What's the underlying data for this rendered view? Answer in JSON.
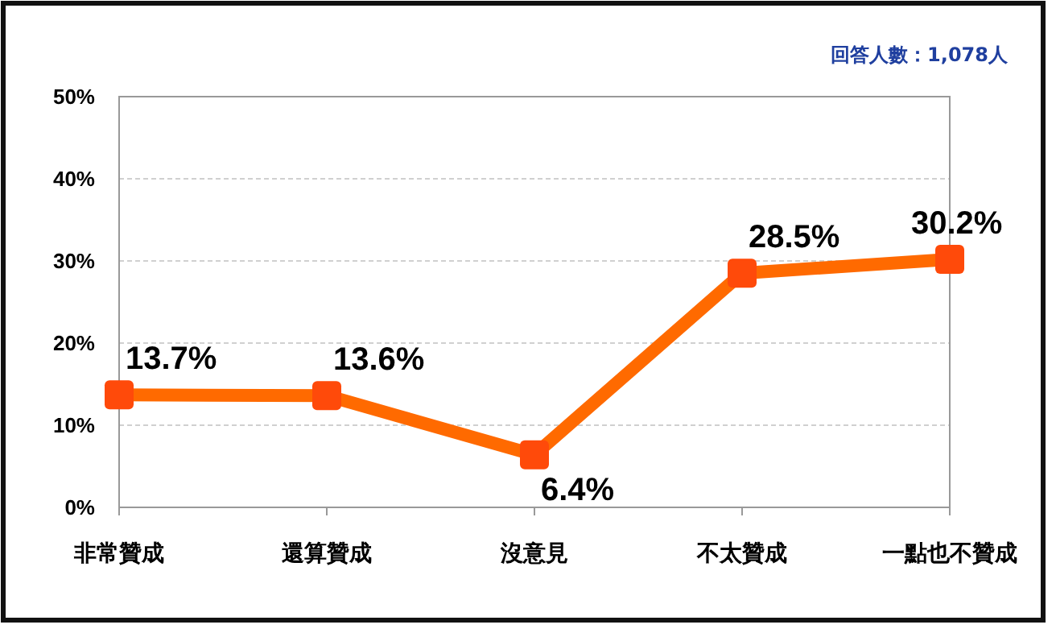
{
  "chart_data": {
    "type": "line",
    "categories": [
      "非常贊成",
      "還算贊成",
      "沒意見",
      "不太贊成",
      "一點也不贊成"
    ],
    "series": [
      {
        "color": "#ff6a00",
        "values": [
          13.7,
          13.6,
          6.4,
          28.5,
          30.2
        ],
        "value_labels": [
          "13.7%",
          "13.6%",
          "6.4%",
          "28.5%",
          "30.2%"
        ]
      }
    ],
    "ylim": [
      0,
      50
    ],
    "yticks": [
      {
        "value": 0,
        "label": "0%"
      },
      {
        "value": 10,
        "label": "10%"
      },
      {
        "value": 20,
        "label": "20%"
      },
      {
        "value": 30,
        "label": "30%"
      },
      {
        "value": 40,
        "label": "40%"
      },
      {
        "value": 50,
        "label": "50%"
      }
    ],
    "grid": "y",
    "marker": "square",
    "line_style": "solid",
    "annotations": [
      "回答人數：1,078人"
    ]
  }
}
